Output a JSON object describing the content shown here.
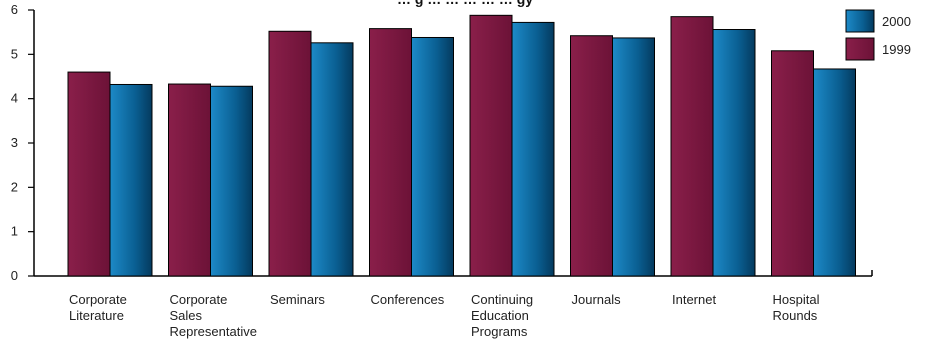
{
  "chart_data": {
    "type": "bar",
    "title": "… g … … … … … gy",
    "xlabel": "",
    "ylabel": "",
    "ylim": [
      0,
      6
    ],
    "yticks": [
      0,
      1,
      2,
      3,
      4,
      5,
      6
    ],
    "grid": false,
    "legend": "top-right",
    "categories": [
      [
        "Corporate",
        "Literature"
      ],
      [
        "Corporate",
        "Sales",
        "Representative"
      ],
      [
        "Seminars"
      ],
      [
        "Conferences"
      ],
      [
        "Continuing",
        "Education",
        "Programs"
      ],
      [
        "Journals"
      ],
      [
        "Internet"
      ],
      [
        "Hospital",
        "Rounds"
      ]
    ],
    "series": [
      {
        "name": "1999",
        "color": "#7a1840",
        "values": [
          4.6,
          4.33,
          5.52,
          5.58,
          5.88,
          5.42,
          5.85,
          5.08
        ]
      },
      {
        "name": "2000",
        "color": "#0a6a9e",
        "values": [
          4.32,
          4.28,
          5.26,
          5.38,
          5.72,
          5.37,
          5.56,
          4.67
        ]
      }
    ],
    "legend_order": [
      "2000",
      "1999"
    ]
  }
}
